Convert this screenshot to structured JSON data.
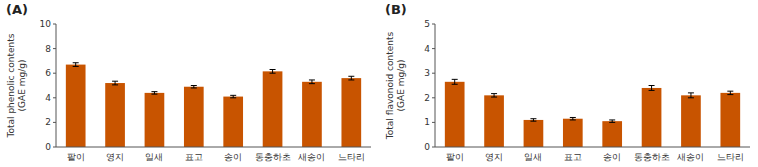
{
  "chart_data": [
    {
      "type": "bar",
      "title": "(A)",
      "categories": [
        "팥이",
        "영지",
        "일새",
        "표고",
        "송이",
        "동충하초",
        "새송이",
        "느타리"
      ],
      "values": [
        6.7,
        5.2,
        4.4,
        4.9,
        4.1,
        6.15,
        5.3,
        5.6
      ],
      "errors": [
        0.15,
        0.15,
        0.1,
        0.1,
        0.1,
        0.15,
        0.15,
        0.15
      ],
      "ylabel": "Total phenolic contents\n(GAE mg/g)",
      "ylim": [
        0,
        10
      ],
      "yticks": [
        0,
        2,
        4,
        6,
        8,
        10
      ],
      "color": "#C85400",
      "grid": false
    },
    {
      "type": "bar",
      "title": "(B)",
      "categories": [
        "팥이",
        "영지",
        "일새",
        "표고",
        "송이",
        "동충하초",
        "새송이",
        "느타리"
      ],
      "values": [
        2.65,
        2.1,
        1.1,
        1.15,
        1.05,
        2.4,
        2.1,
        2.2
      ],
      "errors": [
        0.1,
        0.07,
        0.05,
        0.05,
        0.05,
        0.1,
        0.1,
        0.07
      ],
      "ylabel": "Total flavonoid contents\n(GAE mg/g)",
      "ylim": [
        0,
        5
      ],
      "yticks": [
        0,
        1,
        2,
        3,
        4,
        5
      ],
      "color": "#C85400",
      "grid": false
    }
  ]
}
